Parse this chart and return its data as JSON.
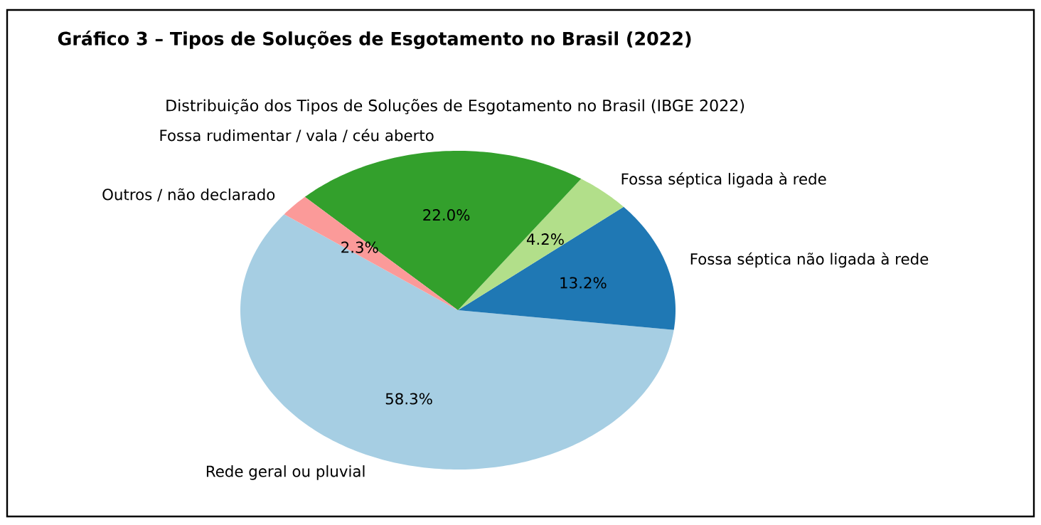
{
  "chart_data": {
    "type": "pie",
    "title": "Gráfico 3 – Tipos de Soluções de Esgotamento no Brasil (2022)",
    "subtitle": "Distribuição dos Tipos de Soluções de Esgotamento no Brasil (IBGE 2022)",
    "categories": [
      "Rede geral ou pluvial",
      "Fossa séptica não ligada à rede",
      "Fossa séptica ligada à rede",
      "Fossa rudimentar / vala / céu aberto",
      "Outros / não declarado"
    ],
    "values": [
      58.3,
      13.2,
      4.2,
      22.0,
      2.3
    ],
    "value_labels": [
      "58.3%",
      "13.2%",
      "4.2%",
      "22.0%",
      "2.3%"
    ],
    "colors": [
      "#a6cee3",
      "#1f78b4",
      "#b2df8a",
      "#33a02c",
      "#fb9a99"
    ]
  }
}
